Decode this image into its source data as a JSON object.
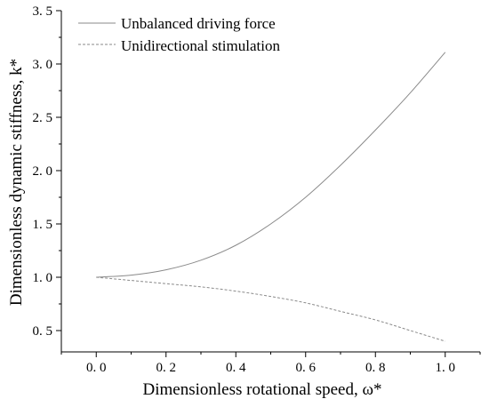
{
  "chart_data": {
    "type": "line",
    "xlabel": "Dimensionless rotational speed,  ω*",
    "ylabel": "Dimensionless dynamic stiffness,  k*",
    "xlim": [
      -0.1,
      1.1
    ],
    "ylim": [
      0.3,
      3.5
    ],
    "xticks": [
      0.0,
      0.2,
      0.4,
      0.6,
      0.8,
      1.0
    ],
    "xtick_labels": [
      "0. 0",
      "0. 2",
      "0. 4",
      "0. 6",
      "0. 8",
      "1. 0"
    ],
    "yticks": [
      0.5,
      1.0,
      1.5,
      2.0,
      2.5,
      3.0,
      3.5
    ],
    "ytick_labels": [
      "0. 5",
      "1. 0",
      "1. 5",
      "2. 0",
      "2. 5",
      "3. 0",
      "3. 5"
    ],
    "grid": false,
    "legend_position": "top-left",
    "series": [
      {
        "name": "Unbalanced driving force",
        "style": "solid",
        "color": "#8a8a8a",
        "x": [
          0.0,
          0.1,
          0.2,
          0.3,
          0.4,
          0.5,
          0.6,
          0.7,
          0.8,
          0.9,
          1.0
        ],
        "y": [
          1.0,
          1.02,
          1.07,
          1.16,
          1.3,
          1.5,
          1.75,
          2.05,
          2.38,
          2.73,
          3.11
        ]
      },
      {
        "name": "Unidirectional stimulation",
        "style": "dashed",
        "color": "#8a8a8a",
        "x": [
          0.0,
          0.1,
          0.2,
          0.3,
          0.4,
          0.5,
          0.6,
          0.7,
          0.8,
          0.9,
          1.0
        ],
        "y": [
          1.0,
          0.97,
          0.94,
          0.91,
          0.87,
          0.82,
          0.76,
          0.68,
          0.6,
          0.5,
          0.4
        ]
      }
    ]
  }
}
